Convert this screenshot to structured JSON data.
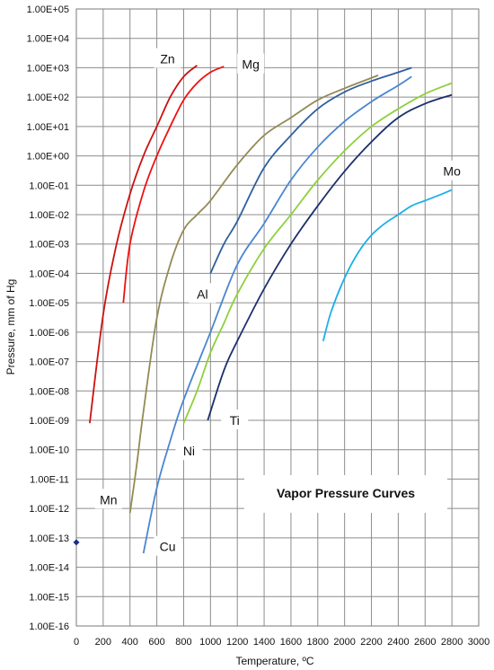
{
  "chart_data": {
    "type": "line",
    "title": "Vapor Pressure Curves",
    "xlabel": "Temperature, ºC",
    "ylabel": "Pressure, mm of Hg",
    "y_scale": "log",
    "xlim": [
      0,
      3000
    ],
    "ylim": [
      1e-16,
      100000.0
    ],
    "grid": true,
    "x_ticks": [
      0,
      200,
      400,
      600,
      800,
      1000,
      1200,
      1400,
      1600,
      1800,
      2000,
      2200,
      2400,
      2600,
      2800,
      3000
    ],
    "y_ticks": [
      {
        "v": 100000.0,
        "label": "1.00E+05"
      },
      {
        "v": 10000.0,
        "label": "1.00E+04"
      },
      {
        "v": 1000.0,
        "label": "1.00E+03"
      },
      {
        "v": 100.0,
        "label": "1.00E+02"
      },
      {
        "v": 10.0,
        "label": "1.00E+01"
      },
      {
        "v": 1.0,
        "label": "1.00E+00"
      },
      {
        "v": 0.1,
        "label": "1.00E-01"
      },
      {
        "v": 0.01,
        "label": "1.00E-02"
      },
      {
        "v": 0.001,
        "label": "1.00E-03"
      },
      {
        "v": 0.0001,
        "label": "1.00E-04"
      },
      {
        "v": 1e-05,
        "label": "1.00E-05"
      },
      {
        "v": 1e-06,
        "label": "1.00E-06"
      },
      {
        "v": 1e-07,
        "label": "1.00E-07"
      },
      {
        "v": 1e-08,
        "label": "1.00E-08"
      },
      {
        "v": 1e-09,
        "label": "1.00E-09"
      },
      {
        "v": 1e-10,
        "label": "1.00E-10"
      },
      {
        "v": 1e-11,
        "label": "1.00E-11"
      },
      {
        "v": 1e-12,
        "label": "1.00E-12"
      },
      {
        "v": 1e-13,
        "label": "1.00E-13"
      },
      {
        "v": 1e-14,
        "label": "1.00E-14"
      },
      {
        "v": 1e-15,
        "label": "1.00E-15"
      },
      {
        "v": 1e-16,
        "label": "1.00E-16"
      }
    ],
    "series": [
      {
        "name": "Zn",
        "color": "#cc1111",
        "x": [
          100,
          200,
          300,
          400,
          500,
          600,
          700,
          800,
          900
        ],
        "y": [
          8e-10,
          4e-06,
          0.001,
          0.05,
          1,
          10,
          100,
          500,
          1200
        ]
      },
      {
        "name": "Mg",
        "color": "#ee1111",
        "x": [
          350,
          400,
          500,
          600,
          700,
          800,
          900,
          1000,
          1100
        ],
        "y": [
          1e-05,
          0.001,
          0.06,
          1,
          10,
          80,
          300,
          700,
          1100
        ]
      },
      {
        "name": "Mn",
        "color": "#948a54",
        "x": [
          400,
          450,
          500,
          600,
          700,
          800,
          900,
          1000,
          1200,
          1400,
          1600,
          1800,
          2000,
          2250
        ],
        "y": [
          7e-13,
          3e-11,
          2e-09,
          3e-06,
          0.0002,
          0.003,
          0.01,
          0.03,
          0.5,
          5,
          20,
          80,
          200,
          550
        ]
      },
      {
        "name": "Al",
        "color": "#2f5f9f",
        "x": [
          1000,
          1100,
          1200,
          1400,
          1600,
          1800,
          2000,
          2200,
          2400,
          2500
        ],
        "y": [
          0.0001,
          0.001,
          0.006,
          0.4,
          5,
          40,
          150,
          350,
          700,
          1000
        ]
      },
      {
        "name": "Cu",
        "color": "#4a86d0",
        "x": [
          500,
          600,
          700,
          800,
          1000,
          1200,
          1400,
          1600,
          1800,
          2000,
          2200,
          2400,
          2500
        ],
        "y": [
          3e-14,
          5e-12,
          2e-10,
          5e-09,
          1e-06,
          0.0002,
          0.005,
          0.15,
          2,
          15,
          70,
          250,
          500
        ]
      },
      {
        "name": "Ni",
        "color": "#8dd03b",
        "x": [
          800,
          900,
          1000,
          1100,
          1200,
          1400,
          1600,
          1800,
          2000,
          2200,
          2400,
          2600,
          2800
        ],
        "y": [
          8e-10,
          1e-08,
          2e-07,
          2e-06,
          2e-05,
          0.0007,
          0.01,
          0.15,
          1.5,
          10,
          40,
          130,
          300
        ]
      },
      {
        "name": "Ti",
        "color": "#1a2e6b",
        "x": [
          980,
          1100,
          1200,
          1400,
          1600,
          1800,
          2000,
          2200,
          2400,
          2600,
          2800
        ],
        "y": [
          1e-09,
          5e-08,
          5e-07,
          3e-05,
          0.001,
          0.02,
          0.3,
          3,
          20,
          60,
          120
        ]
      },
      {
        "name": "Mo",
        "color": "#1cb0e8",
        "x": [
          1840,
          1900,
          2000,
          2100,
          2200,
          2300,
          2400,
          2500,
          2600,
          2700,
          2800
        ],
        "y": [
          5e-07,
          5e-06,
          7e-05,
          0.0005,
          0.002,
          0.005,
          0.01,
          0.02,
          0.03,
          0.045,
          0.07
        ]
      }
    ],
    "markers": [
      {
        "x": 0,
        "y": 7e-14,
        "color": "#1a2e8a"
      }
    ],
    "labels": [
      {
        "text": "Zn",
        "x": 680,
        "y": 2000
      },
      {
        "text": "Mg",
        "x": 1300,
        "y": 1300
      },
      {
        "text": "Mn",
        "x": 240,
        "y": 2e-12
      },
      {
        "text": "Al",
        "x": 940,
        "y": 2e-05
      },
      {
        "text": "Cu",
        "x": 680,
        "y": 5e-14
      },
      {
        "text": "Ni",
        "x": 840,
        "y": 9e-11
      },
      {
        "text": "Ti",
        "x": 1180,
        "y": 1e-09
      },
      {
        "text": "Mo",
        "x": 2800,
        "y": 0.3
      }
    ]
  }
}
